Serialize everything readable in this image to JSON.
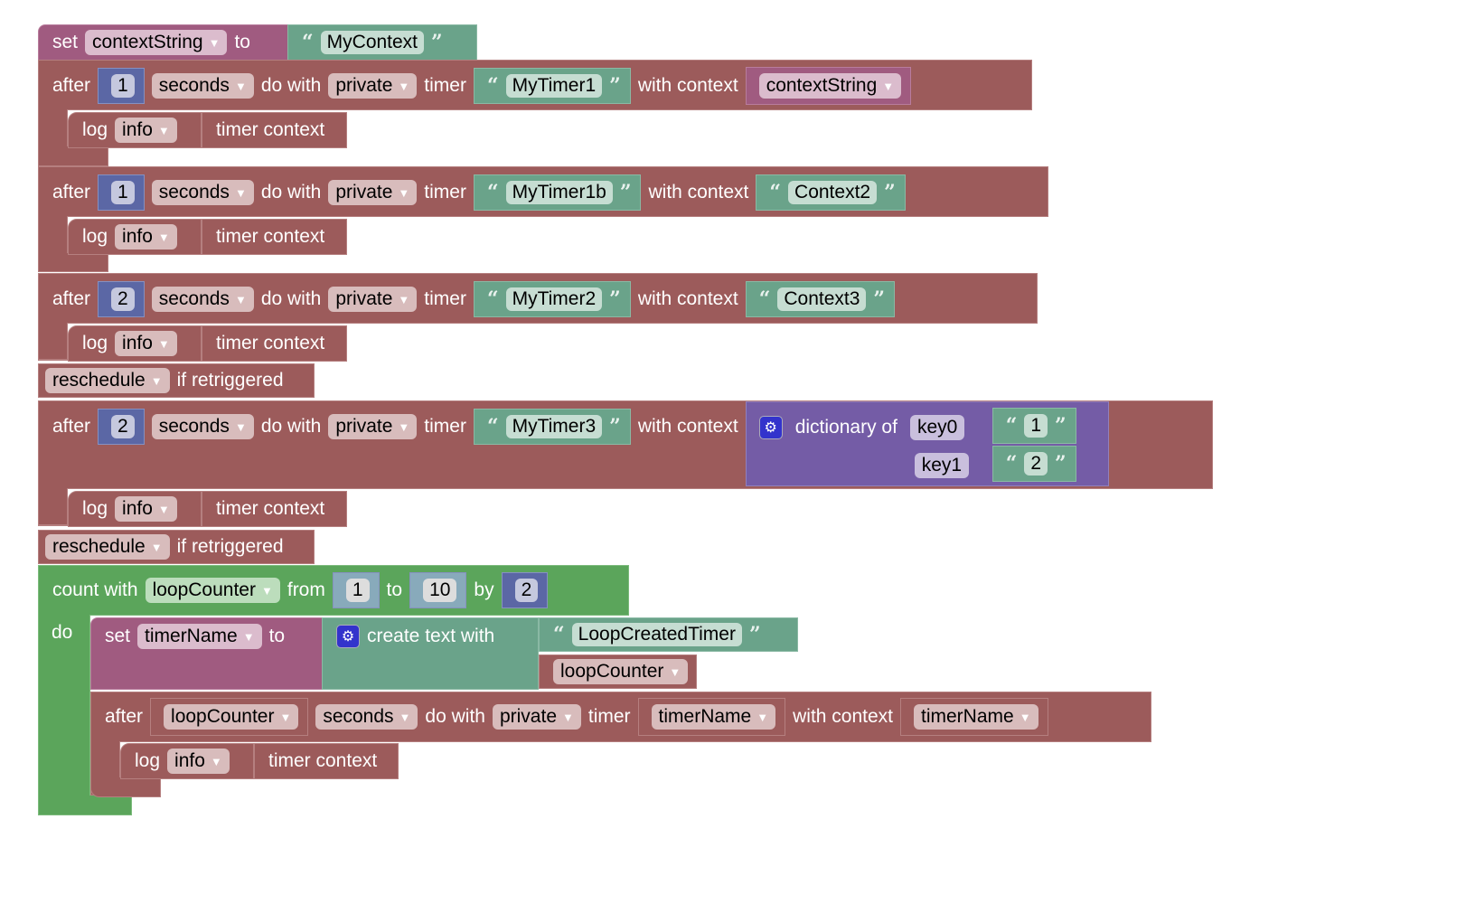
{
  "set_context": {
    "set": "set",
    "var": "contextString",
    "to": "to",
    "value": "MyContext"
  },
  "timers": [
    {
      "after": "after",
      "delay": "1",
      "unit": "seconds",
      "do_with": "do with",
      "scope": "private",
      "timer": "timer",
      "name": "MyTimer1",
      "with_context": "with context",
      "context": "contextString",
      "log": "log",
      "level": "info",
      "log_value": "timer context"
    },
    {
      "after": "after",
      "delay": "1",
      "unit": "seconds",
      "do_with": "do with",
      "scope": "private",
      "timer": "timer",
      "name": "MyTimer1b",
      "with_context": "with context",
      "context": "Context2",
      "log": "log",
      "level": "info",
      "log_value": "timer context"
    },
    {
      "after": "after",
      "delay": "2",
      "unit": "seconds",
      "do_with": "do with",
      "scope": "private",
      "timer": "timer",
      "name": "MyTimer2",
      "with_context": "with context",
      "context": "Context3",
      "log": "log",
      "level": "info",
      "log_value": "timer context",
      "reschedule": "reschedule",
      "retrigger": "if retriggered"
    },
    {
      "after": "after",
      "delay": "2",
      "unit": "seconds",
      "do_with": "do with",
      "scope": "private",
      "timer": "timer",
      "name": "MyTimer3",
      "with_context": "with context",
      "log": "log",
      "level": "info",
      "log_value": "timer context",
      "reschedule": "reschedule",
      "retrigger": "if retriggered"
    }
  ],
  "dict": {
    "label": "dictionary of",
    "icon": "gear-icon",
    "keys": [
      {
        "key": "key0",
        "value": "1"
      },
      {
        "key": "key1",
        "value": "2"
      }
    ]
  },
  "loop": {
    "count_with": "count with",
    "var": "loopCounter",
    "from": "from",
    "from_val": "1",
    "to": "to",
    "to_val": "10",
    "by": "by",
    "by_val": "2",
    "do": "do",
    "set": "set",
    "set_var": "timerName",
    "set_to": "to",
    "create_text": "create text with",
    "text_item": "LoopCreatedTimer",
    "text_var": "loopCounter",
    "timer": {
      "after": "after",
      "delay_var": "loopCounter",
      "unit": "seconds",
      "do_with": "do with",
      "scope": "private",
      "timer": "timer",
      "name_var": "timerName",
      "with_context": "with context",
      "context_var": "timerName",
      "log": "log",
      "level": "info",
      "log_value": "timer context"
    }
  },
  "colors": {
    "timer": "#9c5b5b",
    "variable": "#a05b80",
    "text": "#6aa38a",
    "math": "#5b67a5",
    "dictionary": "#745ca6",
    "loop": "#5ba55b"
  }
}
